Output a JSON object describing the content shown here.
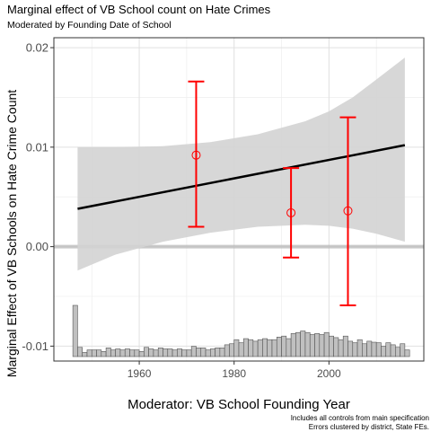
{
  "title": "Marginal effect of VB School count on Hate Crimes",
  "subtitle": "Moderated by Founding Date of School",
  "caption": [
    "Includes all controls from main specification",
    "Errors clustered by district, State FEs."
  ],
  "chart_data": {
    "type": "line",
    "xlabel": "Moderator: VB School Founding Year",
    "ylabel": "Marginal Effect of VB Schools on Hate Crime Count",
    "xlim": [
      1942,
      2020
    ],
    "ylim": [
      -0.0115,
      0.021
    ],
    "x_ticks": [
      1960,
      1980,
      2000
    ],
    "x_tick_labels": [
      "1960",
      "1980",
      "2000"
    ],
    "y_ticks": [
      -0.01,
      0,
      0.01,
      0.02
    ],
    "y_tick_labels": [
      "-0.01",
      "0.00",
      "0.01",
      "0.02"
    ],
    "grid": true,
    "colors": {
      "line": "#000000",
      "ribbon": "#d3d3d3",
      "points": "#ff0000",
      "hist_fill": "#c0c0c0",
      "hist_stroke": "#555555",
      "zero_line": "#bdbdbd"
    },
    "marginal_effect_line": {
      "x": [
        1947,
        2016
      ],
      "y": [
        0.0038,
        0.0102
      ]
    },
    "confidence_band": {
      "x": [
        1947,
        1955,
        1965,
        1975,
        1985,
        1995,
        2000,
        2005,
        2010,
        2016
      ],
      "lower": [
        -0.0024,
        -0.0008,
        0.0005,
        0.0014,
        0.002,
        0.0022,
        0.0021,
        0.0018,
        0.0013,
        0.0005
      ],
      "upper": [
        0.01,
        0.01,
        0.0101,
        0.0105,
        0.0113,
        0.0126,
        0.0136,
        0.015,
        0.0168,
        0.019
      ]
    },
    "binned_estimates": [
      {
        "x": 1972,
        "estimate": 0.0092,
        "lower": 0.002,
        "upper": 0.0166
      },
      {
        "x": 1992,
        "estimate": 0.0034,
        "lower": -0.0011,
        "upper": 0.0079
      },
      {
        "x": 2004,
        "estimate": 0.0036,
        "lower": -0.0059,
        "upper": 0.013
      }
    ],
    "histogram": {
      "x_start": 1946,
      "bin_width": 1,
      "relative_heights": [
        1.0,
        0.18,
        0.08,
        0.13,
        0.13,
        0.13,
        0.1,
        0.17,
        0.13,
        0.15,
        0.13,
        0.15,
        0.13,
        0.13,
        0.1,
        0.18,
        0.15,
        0.13,
        0.17,
        0.15,
        0.15,
        0.13,
        0.15,
        0.13,
        0.13,
        0.2,
        0.17,
        0.17,
        0.13,
        0.15,
        0.17,
        0.17,
        0.23,
        0.25,
        0.33,
        0.27,
        0.35,
        0.33,
        0.3,
        0.33,
        0.35,
        0.33,
        0.33,
        0.38,
        0.4,
        0.35,
        0.45,
        0.47,
        0.5,
        0.47,
        0.43,
        0.45,
        0.43,
        0.47,
        0.4,
        0.37,
        0.33,
        0.4,
        0.3,
        0.27,
        0.33,
        0.25,
        0.3,
        0.28,
        0.27,
        0.2,
        0.27,
        0.23,
        0.18,
        0.25,
        0.13
      ]
    }
  }
}
